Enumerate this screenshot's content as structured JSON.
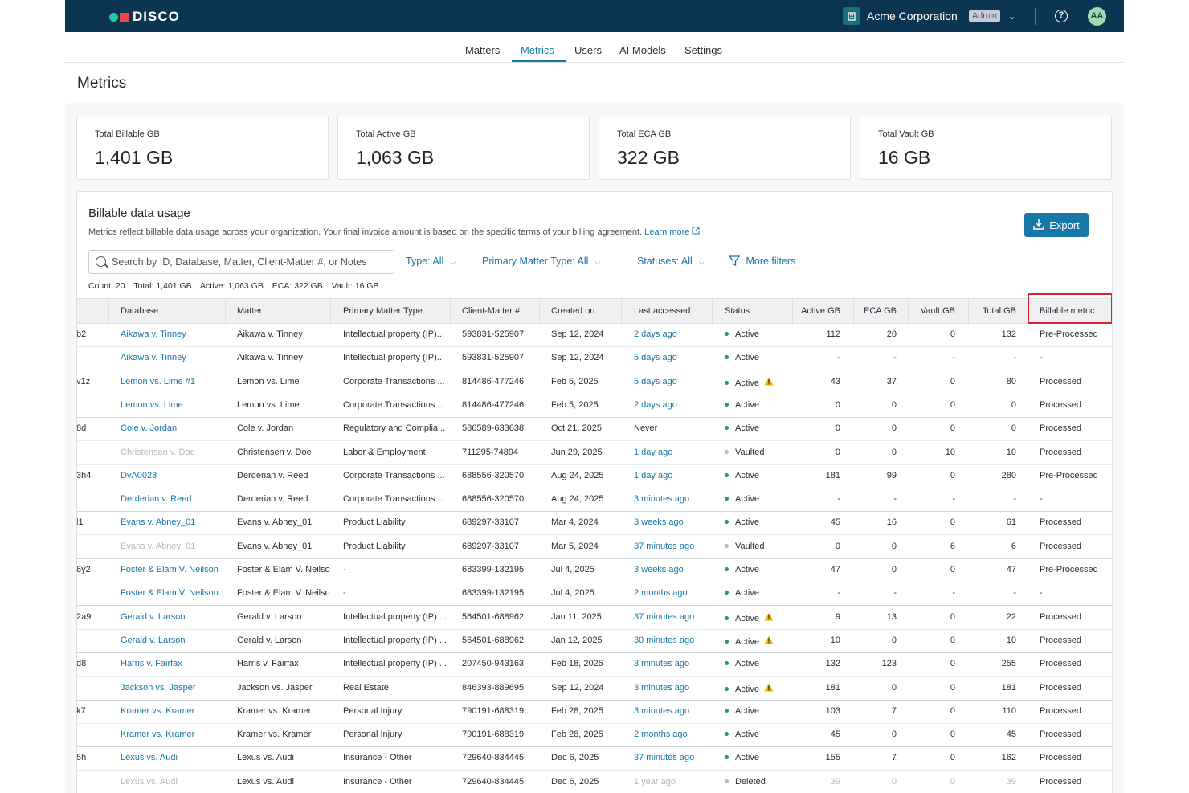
{
  "app": {
    "brand": "DISCO"
  },
  "header": {
    "org_name": "Acme Corporation",
    "role_badge": "Admin",
    "avatar_initials": "AA",
    "help_icon": "question-circle-icon"
  },
  "nav": {
    "tabs": [
      "Matters",
      "Metrics",
      "Users",
      "AI Models",
      "Settings"
    ],
    "active": "Metrics"
  },
  "page": {
    "title": "Metrics"
  },
  "cards": [
    {
      "label": "Total Billable GB",
      "value": "1,401 GB"
    },
    {
      "label": "Total Active GB",
      "value": "1,063 GB"
    },
    {
      "label": "Total ECA GB",
      "value": "322 GB"
    },
    {
      "label": "Total Vault GB",
      "value": "16 GB"
    }
  ],
  "usage": {
    "title": "Billable data usage",
    "description": "Metrics reflect billable data usage across your organization. Your final invoice amount is based on the specific terms of your billing agreement.",
    "learn_more": "Learn more",
    "export_label": "Export",
    "search_placeholder": "Search by ID, Database, Matter, Client-Matter #, or Notes",
    "filters": {
      "type": "Type: All",
      "primary_matter_type": "Primary Matter Type: All",
      "statuses": "Statuses: All",
      "more": "More filters"
    },
    "counts": {
      "count_label": "Count:",
      "count": "20",
      "total_label": "Total:",
      "total": "1,401 GB",
      "active_label": "Active:",
      "active": "1,063 GB",
      "eca_label": "ECA:",
      "eca": "322 GB",
      "vault_label": "Vault:",
      "vault": "16 GB"
    },
    "columns": [
      "Database",
      "Matter",
      "Primary Matter Type",
      "Client-Matter #",
      "Created on",
      "Last accessed",
      "Status",
      "Active GB",
      "ECA GB",
      "Vault GB",
      "Total GB",
      "Billable metric"
    ],
    "rows": [
      {
        "id": "b2",
        "database": "Aikawa v. Tinney",
        "matter": "Aikawa v. Tinney",
        "type": "Intellectual property (IP)...",
        "cm": "593831-525907",
        "created": "Sep 12, 2024",
        "accessed": "2 days ago",
        "status": "Active",
        "active": "112",
        "eca": "20",
        "vault": "0",
        "total": "132",
        "metric": "Pre-Processed",
        "warn": false,
        "db_muted": false,
        "group_end": false
      },
      {
        "id": "",
        "database": "Aikawa v. Tinney",
        "matter": "Aikawa v. Tinney",
        "type": "Intellectual property (IP)...",
        "cm": "593831-525907",
        "created": "Sep 12, 2024",
        "accessed": "5 days ago",
        "status": "Active",
        "active": "-",
        "eca": "-",
        "vault": "-",
        "total": "-",
        "metric": "-",
        "warn": false,
        "db_muted": false,
        "group_end": true
      },
      {
        "id": "v1z",
        "database": "Lemon vs. Lime #1",
        "matter": "Lemon vs. Lime",
        "type": "Corporate Transactions ...",
        "cm": "814486-477246",
        "created": "Feb 5, 2025",
        "accessed": "5 days ago",
        "status": "Active",
        "active": "43",
        "eca": "37",
        "vault": "0",
        "total": "80",
        "metric": "Processed",
        "warn": true,
        "db_muted": false,
        "group_end": false
      },
      {
        "id": "",
        "database": "Lemon vs. Lime",
        "matter": "Lemon vs. Lime",
        "type": "Corporate Transactions ...",
        "cm": "814486-477246",
        "created": "Feb 5, 2025",
        "accessed": "2 days ago",
        "status": "Active",
        "active": "0",
        "eca": "0",
        "vault": "0",
        "total": "0",
        "metric": "Processed",
        "warn": false,
        "db_muted": false,
        "group_end": true
      },
      {
        "id": "8d",
        "database": "Cole v. Jordan",
        "matter": "Cole v. Jordan",
        "type": "Regulatory and Complia...",
        "cm": "586589-633638",
        "created": "Oct 21, 2025",
        "accessed": "Never",
        "status": "Active",
        "active": "0",
        "eca": "0",
        "vault": "0",
        "total": "0",
        "metric": "Processed",
        "warn": false,
        "db_muted": false,
        "group_end": false
      },
      {
        "id": "",
        "database": "Christensen v. Doe",
        "matter": "Christensen v. Doe",
        "type": "Labor & Employment",
        "cm": "711295-74894",
        "created": "Jun 29, 2025",
        "accessed": "1 day ago",
        "status": "Vaulted",
        "active": "0",
        "eca": "0",
        "vault": "10",
        "total": "10",
        "metric": "Processed",
        "warn": false,
        "db_muted": true,
        "group_end": false
      },
      {
        "id": "3h4",
        "database": "DvA0023",
        "matter": "Derderian v. Reed",
        "type": "Corporate Transactions ...",
        "cm": "688556-320570",
        "created": "Aug 24, 2025",
        "accessed": "1 day ago",
        "status": "Active",
        "active": "181",
        "eca": "99",
        "vault": "0",
        "total": "280",
        "metric": "Pre-Processed",
        "warn": false,
        "db_muted": false,
        "group_end": false
      },
      {
        "id": "",
        "database": "Derderian v. Reed",
        "matter": "Derderian v. Reed",
        "type": "Corporate Transactions ...",
        "cm": "688556-320570",
        "created": "Aug 24, 2025",
        "accessed": "3 minutes ago",
        "status": "Active",
        "active": "-",
        "eca": "-",
        "vault": "-",
        "total": "-",
        "metric": "-",
        "warn": false,
        "db_muted": false,
        "group_end": true
      },
      {
        "id": "l1",
        "database": "Evans v. Abney_01",
        "matter": "Evans v. Abney_01",
        "type": "Product Liability",
        "cm": "689297-33107",
        "created": "Mar 4, 2024",
        "accessed": "3 weeks ago",
        "status": "Active",
        "active": "45",
        "eca": "16",
        "vault": "0",
        "total": "61",
        "metric": "Processed",
        "warn": false,
        "db_muted": false,
        "group_end": false
      },
      {
        "id": "",
        "database": "Evans v. Abney_01",
        "matter": "Evans v. Abney_01",
        "type": "Product Liability",
        "cm": "689297-33107",
        "created": "Mar 5, 2024",
        "accessed": "37 minutes ago",
        "status": "Vaulted",
        "active": "0",
        "eca": "0",
        "vault": "6",
        "total": "6",
        "metric": "Processed",
        "warn": false,
        "db_muted": true,
        "group_end": true
      },
      {
        "id": "6y2",
        "database": "Foster & Elam V. Neilson",
        "matter": "Foster & Elam V. Neilso",
        "type": "-",
        "cm": "683399-132195",
        "created": "Jul 4, 2025",
        "accessed": "3 weeks ago",
        "status": "Active",
        "active": "47",
        "eca": "0",
        "vault": "0",
        "total": "47",
        "metric": "Pre-Processed",
        "warn": false,
        "db_muted": false,
        "group_end": false
      },
      {
        "id": "",
        "database": "Foster & Elam V. Neilson",
        "matter": "Foster & Elam V. Neilso",
        "type": "-",
        "cm": "683399-132195",
        "created": "Jul 4, 2025",
        "accessed": "2 months ago",
        "status": "Active",
        "active": "-",
        "eca": "-",
        "vault": "-",
        "total": "-",
        "metric": "-",
        "warn": false,
        "db_muted": false,
        "group_end": true
      },
      {
        "id": "2a9",
        "database": "Gerald v. Larson",
        "matter": "Gerald v. Larson",
        "type": "Intellectual property (IP) ...",
        "cm": "564501-688962",
        "created": "Jan 11, 2025",
        "accessed": "37 minutes ago",
        "status": "Active",
        "active": "9",
        "eca": "13",
        "vault": "0",
        "total": "22",
        "metric": "Processed",
        "warn": true,
        "db_muted": false,
        "group_end": false
      },
      {
        "id": "",
        "database": "Gerald v. Larson",
        "matter": "Gerald v. Larson",
        "type": "Intellectual property (IP) ...",
        "cm": "564501-688962",
        "created": "Jan 12, 2025",
        "accessed": "30 minutes ago",
        "status": "Active",
        "active": "10",
        "eca": "0",
        "vault": "0",
        "total": "10",
        "metric": "Processed",
        "warn": true,
        "db_muted": false,
        "group_end": true
      },
      {
        "id": "d8",
        "database": "Harris v. Fairfax",
        "matter": "Harris v. Fairfax",
        "type": "Intellectual property (IP) ...",
        "cm": "207450-943163",
        "created": "Feb 18, 2025",
        "accessed": "3 minutes ago",
        "status": "Active",
        "active": "132",
        "eca": "123",
        "vault": "0",
        "total": "255",
        "metric": "Processed",
        "warn": false,
        "db_muted": false,
        "group_end": false
      },
      {
        "id": "",
        "database": "Jackson vs. Jasper",
        "matter": "Jackson vs. Jasper",
        "type": "Real Estate",
        "cm": "846393-889695",
        "created": "Sep 12, 2024",
        "accessed": "3 minutes ago",
        "status": "Active",
        "active": "181",
        "eca": "0",
        "vault": "0",
        "total": "181",
        "metric": "Processed",
        "warn": true,
        "db_muted": false,
        "group_end": true
      },
      {
        "id": "k7",
        "database": "Kramer vs. Kramer",
        "matter": "Kramer vs. Kramer",
        "type": "Personal Injury",
        "cm": "790191-688319",
        "created": "Feb 28, 2025",
        "accessed": "3 minutes ago",
        "status": "Active",
        "active": "103",
        "eca": "7",
        "vault": "0",
        "total": "110",
        "metric": "Processed",
        "warn": false,
        "db_muted": false,
        "group_end": false
      },
      {
        "id": "",
        "database": "Kramer vs. Kramer",
        "matter": "Kramer vs. Kramer",
        "type": "Personal Injury",
        "cm": "790191-688319",
        "created": "Feb 28, 2025",
        "accessed": "2 months ago",
        "status": "Active",
        "active": "45",
        "eca": "0",
        "vault": "0",
        "total": "45",
        "metric": "Processed",
        "warn": false,
        "db_muted": false,
        "group_end": true
      },
      {
        "id": "5h",
        "database": "Lexus vs. Audi",
        "matter": "Lexus vs. Audi",
        "type": "Insurance - Other",
        "cm": "729640-834445",
        "created": "Dec 6, 2025",
        "accessed": "37 minutes ago",
        "status": "Active",
        "active": "155",
        "eca": "7",
        "vault": "0",
        "total": "162",
        "metric": "Processed",
        "warn": false,
        "db_muted": false,
        "group_end": false
      },
      {
        "id": "",
        "database": "Lexus vs. Audi",
        "matter": "Lexus vs. Audi",
        "type": "Insurance - Other",
        "cm": "729640-834445",
        "created": "Dec 6, 2025",
        "accessed": "1 year ago",
        "status": "Deleted",
        "active": "39",
        "eca": "0",
        "vault": "0",
        "total": "39",
        "metric": "Processed",
        "warn": false,
        "db_muted": true,
        "group_end": true,
        "deleted": true
      }
    ]
  },
  "colors": {
    "topbar": "#0b3550",
    "accent": "#1777a6",
    "active_dot": "#1e9a63",
    "warning": "#e8a800",
    "highlight": "#d9232a"
  }
}
